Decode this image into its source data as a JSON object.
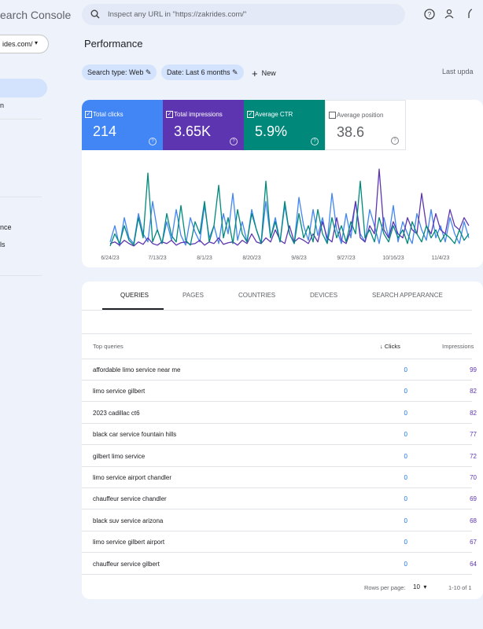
{
  "sidebar": {
    "product": "earch Console",
    "property": "ides.com/",
    "nav": [
      "n",
      "nce",
      "ls"
    ]
  },
  "search": {
    "placeholder": "Inspect any URL in \"https://zakrides.com/\""
  },
  "header": {
    "title": "Performance",
    "chips": [
      "Search type: Web",
      "Date: Last 6 months"
    ],
    "new": "New",
    "last_updated": "Last upda"
  },
  "cards": [
    {
      "label": "Total clicks",
      "value": "214",
      "color": "#4285f4",
      "checked": true
    },
    {
      "label": "Total impressions",
      "value": "3.65K",
      "color": "#5e35b1",
      "checked": true
    },
    {
      "label": "Average CTR",
      "value": "5.9%",
      "color": "#00897b",
      "checked": true
    },
    {
      "label": "Average position",
      "value": "38.6",
      "color": "#ffffff",
      "checked": false
    }
  ],
  "chart": {
    "type": "line",
    "x_labels": [
      "6/24/23",
      "7/13/23",
      "8/1/23",
      "8/20/23",
      "9/8/23",
      "9/27/23",
      "10/16/23",
      "11/4/23"
    ],
    "series": [
      {
        "color": "#4285f4",
        "values": [
          10,
          30,
          5,
          40,
          15,
          8,
          45,
          20,
          10,
          60,
          25,
          8,
          35,
          12,
          50,
          18,
          6,
          40,
          22,
          10,
          55,
          15,
          30,
          8,
          45,
          20,
          70,
          12,
          35,
          10,
          50,
          25,
          8,
          60,
          15,
          40,
          10,
          55,
          20,
          8,
          65,
          30,
          12,
          50,
          18,
          40,
          10,
          70,
          25,
          8,
          45,
          15,
          60,
          20,
          10,
          50,
          30,
          8,
          40,
          15,
          55,
          10,
          35,
          20,
          8,
          45,
          25,
          12,
          50,
          15,
          30,
          10,
          40,
          20,
          8,
          35,
          15
        ]
      },
      {
        "color": "#5e35b1",
        "values": [
          8,
          10,
          6,
          12,
          8,
          5,
          10,
          7,
          15,
          8,
          6,
          10,
          8,
          12,
          6,
          9,
          10,
          7,
          8,
          12,
          6,
          10,
          8,
          15,
          7,
          9,
          10,
          6,
          12,
          8,
          20,
          10,
          8,
          15,
          10,
          25,
          12,
          8,
          30,
          10,
          15,
          12,
          8,
          20,
          10,
          35,
          15,
          10,
          40,
          12,
          8,
          25,
          60,
          15,
          10,
          30,
          20,
          100,
          25,
          15,
          35,
          20,
          15,
          40,
          25,
          20,
          70,
          30,
          20,
          45,
          25,
          20,
          50,
          30,
          25,
          40,
          30
        ]
      },
      {
        "color": "#00897b",
        "values": [
          5,
          20,
          8,
          30,
          12,
          6,
          40,
          15,
          95,
          10,
          25,
          8,
          45,
          18,
          10,
          55,
          12,
          6,
          35,
          20,
          60,
          10,
          30,
          80,
          15,
          40,
          8,
          50,
          20,
          10,
          45,
          25,
          8,
          85,
          15,
          35,
          10,
          60,
          20,
          8,
          45,
          15,
          30,
          10,
          50,
          20,
          8,
          40,
          15,
          30,
          10,
          35,
          20,
          85,
          15,
          25,
          10,
          40,
          20,
          10,
          30,
          15,
          25,
          8,
          35,
          20,
          10,
          30,
          15,
          25,
          10,
          20,
          15,
          8,
          25,
          12,
          20
        ]
      }
    ]
  },
  "table": {
    "tabs": [
      "QUERIES",
      "PAGES",
      "COUNTRIES",
      "DEVICES",
      "SEARCH APPEARANCE"
    ],
    "headers": [
      "Top queries",
      "Clicks",
      "Impressions"
    ],
    "rows": [
      [
        "affordable limo service near me",
        0,
        99
      ],
      [
        "limo service gilbert",
        0,
        82
      ],
      [
        "2023 cadillac ct6",
        0,
        82
      ],
      [
        "black car service fountain hills",
        0,
        77
      ],
      [
        "gilbert limo service",
        0,
        72
      ],
      [
        "limo service airport chandler",
        0,
        70
      ],
      [
        "chauffeur service chandler",
        0,
        69
      ],
      [
        "black suv service arizona",
        0,
        68
      ],
      [
        "limo service gilbert airport",
        0,
        67
      ],
      [
        "chauffeur service gilbert",
        0,
        64
      ]
    ],
    "footer": {
      "rows_per_page": "Rows per page:",
      "page_size": "10",
      "range": "1-10 of 1"
    }
  }
}
